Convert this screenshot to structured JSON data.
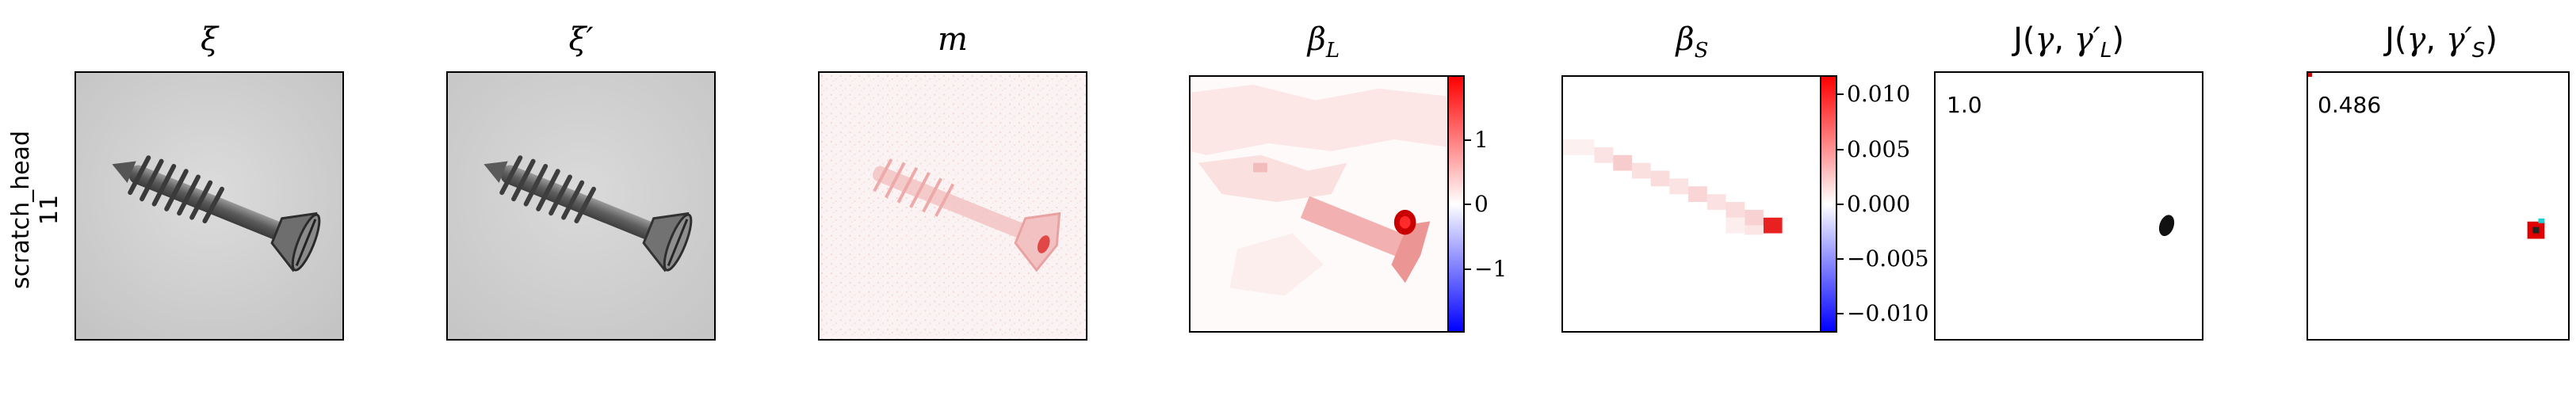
{
  "row_label": {
    "line1": "scratch_head",
    "line2": "11"
  },
  "panels": [
    {
      "title": "ξ",
      "image": "photo of screw (original)"
    },
    {
      "title": "ξ′",
      "image": "photo of screw (reconstruction)"
    },
    {
      "title": "m",
      "image": "difference map"
    },
    {
      "title_main": "β",
      "title_sub": "L",
      "image": "large-scale attribution heatmap"
    },
    {
      "title_main": "β",
      "title_sub": "S",
      "image": "small-scale attribution heatmap"
    },
    {
      "title_prefix": "J(",
      "title_gamma": "γ",
      "title_comma": ", ",
      "title_gamma2": "γ′",
      "title_sub": "L",
      "title_suffix": ")",
      "value": "1.0"
    },
    {
      "title_prefix": "J(",
      "title_gamma": "γ",
      "title_comma": ", ",
      "title_gamma2": "γ′",
      "title_sub": "S",
      "title_suffix": ")",
      "value": "0.486"
    }
  ],
  "colorbar_L": {
    "ticks": [
      "1",
      "0",
      "−1"
    ],
    "colors": [
      "#0000ff",
      "#ffffff",
      "#ff0000"
    ]
  },
  "colorbar_S": {
    "ticks": [
      "0.010",
      "0.005",
      "0.000",
      "−0.005",
      "−0.010"
    ],
    "colors": [
      "#0000ff",
      "#ffffff",
      "#ff0000"
    ]
  }
}
